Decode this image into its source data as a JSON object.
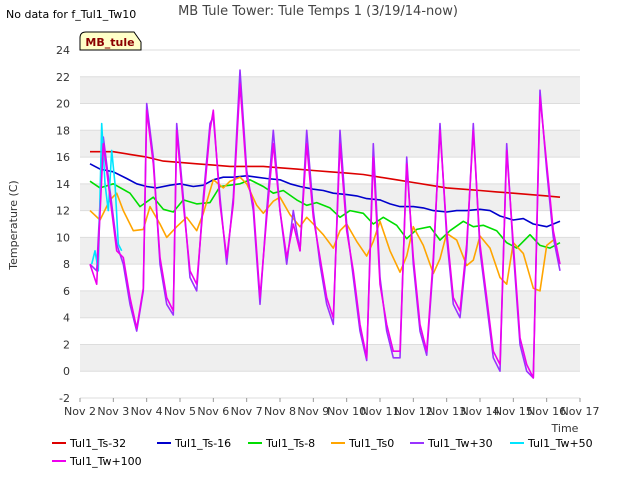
{
  "chart_data": {
    "type": "line",
    "title": "MB Tule Tower: Tule Temps 1 (3/19/14-now)",
    "note": "No data for f_Tul1_Tw10",
    "badge": "MB_tule",
    "xlabel": "Time",
    "ylabel": "Temperature (C)",
    "xlim": [
      2,
      17
    ],
    "ylim": [
      -2,
      24
    ],
    "x_ticks": [
      {
        "v": 2,
        "label": "Nov 2"
      },
      {
        "v": 3,
        "label": "Nov 3"
      },
      {
        "v": 4,
        "label": "Nov 4"
      },
      {
        "v": 5,
        "label": "Nov 5"
      },
      {
        "v": 6,
        "label": "Nov 6"
      },
      {
        "v": 7,
        "label": "Nov 7"
      },
      {
        "v": 8,
        "label": "Nov 8"
      },
      {
        "v": 9,
        "label": "Nov 9"
      },
      {
        "v": 10,
        "label": "Nov 10"
      },
      {
        "v": 11,
        "label": "Nov 11"
      },
      {
        "v": 12,
        "label": "Nov 12"
      },
      {
        "v": 13,
        "label": "Nov 13"
      },
      {
        "v": 14,
        "label": "Nov 14"
      },
      {
        "v": 15,
        "label": "Nov 15"
      },
      {
        "v": 16,
        "label": "Nov 16"
      },
      {
        "v": 17,
        "label": "Nov 17"
      }
    ],
    "y_ticks": [
      -2,
      0,
      2,
      4,
      6,
      8,
      10,
      12,
      14,
      16,
      18,
      20,
      22,
      24
    ],
    "grid": true,
    "legend_position": "bottom",
    "series": [
      {
        "name": "Tul1_Ts-32",
        "color": "#dd0000",
        "x": [
          2.3,
          3.0,
          3.5,
          4.0,
          4.5,
          5.0,
          5.5,
          6.0,
          6.5,
          7.0,
          7.5,
          8.0,
          8.5,
          9.0,
          9.5,
          10.0,
          10.5,
          11.0,
          11.5,
          12.0,
          12.5,
          13.0,
          13.5,
          14.0,
          14.5,
          15.0,
          15.5,
          16.0,
          16.4
        ],
        "y": [
          16.4,
          16.4,
          16.2,
          16.0,
          15.7,
          15.6,
          15.5,
          15.4,
          15.3,
          15.3,
          15.3,
          15.2,
          15.1,
          15.0,
          14.9,
          14.8,
          14.7,
          14.5,
          14.3,
          14.1,
          13.9,
          13.7,
          13.6,
          13.5,
          13.4,
          13.3,
          13.2,
          13.1,
          13.0
        ]
      },
      {
        "name": "Tul1_Ts-16",
        "color": "#0000cc",
        "x": [
          2.3,
          2.6,
          3.0,
          3.4,
          3.7,
          4.0,
          4.3,
          4.7,
          5.0,
          5.4,
          5.7,
          6.0,
          6.3,
          6.6,
          7.0,
          7.3,
          7.6,
          8.0,
          8.3,
          8.6,
          9.0,
          9.3,
          9.6,
          10.0,
          10.3,
          10.6,
          11.0,
          11.3,
          11.6,
          12.0,
          12.3,
          12.6,
          13.0,
          13.3,
          13.6,
          14.0,
          14.3,
          14.6,
          15.0,
          15.3,
          15.6,
          16.0,
          16.4
        ],
        "y": [
          15.5,
          15.1,
          14.9,
          14.4,
          14.0,
          13.8,
          13.7,
          13.9,
          14.0,
          13.8,
          13.9,
          14.3,
          14.5,
          14.5,
          14.6,
          14.5,
          14.4,
          14.3,
          14.0,
          13.8,
          13.6,
          13.5,
          13.3,
          13.2,
          13.1,
          12.9,
          12.8,
          12.5,
          12.3,
          12.3,
          12.2,
          12.0,
          11.9,
          12.0,
          12.0,
          12.1,
          12.0,
          11.6,
          11.3,
          11.4,
          11.0,
          10.8,
          11.2
        ]
      },
      {
        "name": "Tul1_Ts-8",
        "color": "#00dd00",
        "x": [
          2.3,
          2.6,
          3.0,
          3.5,
          3.8,
          4.2,
          4.5,
          4.8,
          5.1,
          5.5,
          5.9,
          6.2,
          6.5,
          6.8,
          7.1,
          7.5,
          7.8,
          8.1,
          8.5,
          8.8,
          9.1,
          9.5,
          9.8,
          10.1,
          10.5,
          10.8,
          11.1,
          11.5,
          11.8,
          12.1,
          12.5,
          12.8,
          13.1,
          13.5,
          13.8,
          14.1,
          14.5,
          14.8,
          15.1,
          15.5,
          15.8,
          16.1,
          16.4
        ],
        "y": [
          14.2,
          13.7,
          14.0,
          13.3,
          12.3,
          13.0,
          12.1,
          11.9,
          12.8,
          12.5,
          12.6,
          13.8,
          13.9,
          14.0,
          14.3,
          13.8,
          13.3,
          13.5,
          12.8,
          12.4,
          12.6,
          12.2,
          11.5,
          12.0,
          11.8,
          11.0,
          11.5,
          10.9,
          9.9,
          10.6,
          10.8,
          9.8,
          10.5,
          11.2,
          10.8,
          10.9,
          10.5,
          9.6,
          9.2,
          10.2,
          9.4,
          9.2,
          9.6
        ]
      },
      {
        "name": "Tul1_Ts0",
        "color": "#ffa500",
        "x": [
          2.3,
          2.6,
          2.9,
          3.1,
          3.3,
          3.6,
          3.9,
          4.1,
          4.4,
          4.6,
          4.9,
          5.2,
          5.5,
          5.7,
          6.0,
          6.3,
          6.5,
          6.8,
          7.0,
          7.3,
          7.5,
          7.8,
          8.0,
          8.3,
          8.6,
          8.8,
          9.0,
          9.3,
          9.6,
          9.8,
          10.0,
          10.3,
          10.6,
          10.8,
          11.0,
          11.3,
          11.6,
          11.8,
          12.0,
          12.3,
          12.6,
          12.8,
          13.0,
          13.3,
          13.6,
          13.8,
          14.0,
          14.3,
          14.6,
          14.8,
          15.0,
          15.3,
          15.6,
          15.8,
          16.0,
          16.2
        ],
        "y": [
          12.0,
          11.3,
          12.8,
          13.3,
          12.0,
          10.5,
          10.6,
          12.3,
          11.0,
          10.0,
          10.8,
          11.5,
          10.5,
          11.8,
          14.3,
          13.7,
          14.2,
          14.5,
          14.0,
          12.4,
          11.8,
          12.7,
          13.0,
          11.7,
          10.8,
          11.5,
          11.0,
          10.2,
          9.2,
          10.5,
          11.0,
          9.7,
          8.6,
          9.7,
          11.2,
          9.0,
          7.4,
          8.6,
          10.8,
          9.4,
          7.3,
          8.4,
          10.3,
          9.8,
          7.9,
          8.3,
          10.1,
          9.2,
          7.0,
          6.5,
          9.6,
          8.8,
          6.2,
          6.0,
          9.4,
          9.8
        ]
      },
      {
        "name": "Tul1_Tw+30",
        "color": "#9933ff",
        "x": [
          2.3,
          2.5,
          2.7,
          2.9,
          3.1,
          3.3,
          3.5,
          3.7,
          3.9,
          4.0,
          4.2,
          4.4,
          4.6,
          4.8,
          4.9,
          5.1,
          5.3,
          5.5,
          5.7,
          5.9,
          6.0,
          6.2,
          6.4,
          6.6,
          6.8,
          7.0,
          7.2,
          7.4,
          7.6,
          7.8,
          8.0,
          8.2,
          8.4,
          8.6,
          8.8,
          9.0,
          9.2,
          9.4,
          9.6,
          9.8,
          10.0,
          10.2,
          10.4,
          10.6,
          10.8,
          11.0,
          11.2,
          11.4,
          11.6,
          11.8,
          12.0,
          12.2,
          12.4,
          12.6,
          12.8,
          13.0,
          13.2,
          13.4,
          13.6,
          13.8,
          14.0,
          14.2,
          14.4,
          14.6,
          14.8,
          15.0,
          15.2,
          15.4,
          15.6,
          15.8,
          16.0,
          16.2,
          16.4
        ],
        "y": [
          8.0,
          7.5,
          17.5,
          13.5,
          9.5,
          8.0,
          5.0,
          3.0,
          6.0,
          20.0,
          16.0,
          8.0,
          5.0,
          4.2,
          18.5,
          13.0,
          7.0,
          6.0,
          13.0,
          18.5,
          19.0,
          13.0,
          8.0,
          13.0,
          22.5,
          15.0,
          12.0,
          5.0,
          12.0,
          18.0,
          12.0,
          8.0,
          12.0,
          9.0,
          18.0,
          12.0,
          8.0,
          5.0,
          3.5,
          18.0,
          11.0,
          7.0,
          3.0,
          0.8,
          17.0,
          7.0,
          3.0,
          1.0,
          1.0,
          16.0,
          8.0,
          3.0,
          1.2,
          8.0,
          18.5,
          10.0,
          5.0,
          4.0,
          9.0,
          18.5,
          9.0,
          5.0,
          1.0,
          0.0,
          17.0,
          9.0,
          2.0,
          0.0,
          -0.5,
          21.0,
          15.0,
          10.0,
          7.5
        ]
      },
      {
        "name": "Tul1_Tw+50",
        "color": "#00e5ff",
        "x": [
          2.35,
          2.45,
          2.55,
          2.65,
          2.75,
          2.85,
          2.95,
          3.05,
          3.15,
          3.25
        ],
        "y": [
          8.0,
          9.0,
          7.5,
          18.5,
          14.0,
          12.0,
          16.5,
          14.0,
          9.5,
          9.0
        ]
      },
      {
        "name": "Tul1_Tw+100",
        "color": "#ee00ee",
        "x": [
          2.3,
          2.5,
          2.7,
          2.9,
          3.1,
          3.3,
          3.5,
          3.7,
          3.9,
          4.0,
          4.2,
          4.4,
          4.6,
          4.8,
          4.9,
          5.1,
          5.3,
          5.5,
          5.7,
          5.9,
          6.0,
          6.2,
          6.4,
          6.6,
          6.8,
          7.0,
          7.2,
          7.4,
          7.6,
          7.8,
          8.0,
          8.2,
          8.4,
          8.6,
          8.8,
          9.0,
          9.2,
          9.4,
          9.6,
          9.8,
          10.0,
          10.2,
          10.4,
          10.6,
          10.8,
          11.0,
          11.2,
          11.4,
          11.6,
          11.8,
          12.0,
          12.2,
          12.4,
          12.6,
          12.8,
          13.0,
          13.2,
          13.4,
          13.6,
          13.8,
          14.0,
          14.2,
          14.4,
          14.6,
          14.8,
          15.0,
          15.2,
          15.4,
          15.6,
          15.8,
          16.0,
          16.2,
          16.4
        ],
        "y": [
          8.0,
          6.5,
          17.0,
          13.0,
          9.0,
          8.5,
          5.5,
          3.2,
          6.2,
          19.5,
          15.5,
          8.5,
          5.5,
          4.5,
          18.0,
          12.5,
          7.5,
          6.5,
          12.5,
          18.0,
          19.5,
          12.5,
          8.5,
          12.5,
          21.5,
          14.5,
          12.5,
          5.5,
          11.5,
          17.0,
          12.0,
          8.5,
          11.0,
          9.0,
          17.0,
          11.5,
          8.5,
          5.5,
          4.0,
          17.0,
          10.5,
          7.5,
          3.5,
          1.0,
          16.0,
          6.5,
          3.5,
          1.5,
          1.5,
          15.5,
          8.5,
          3.5,
          1.5,
          8.5,
          18.0,
          10.5,
          5.5,
          4.5,
          9.5,
          18.0,
          9.5,
          5.5,
          1.5,
          0.5,
          16.5,
          9.5,
          2.5,
          0.5,
          -0.5,
          20.5,
          15.5,
          10.5,
          8.0
        ]
      }
    ]
  }
}
